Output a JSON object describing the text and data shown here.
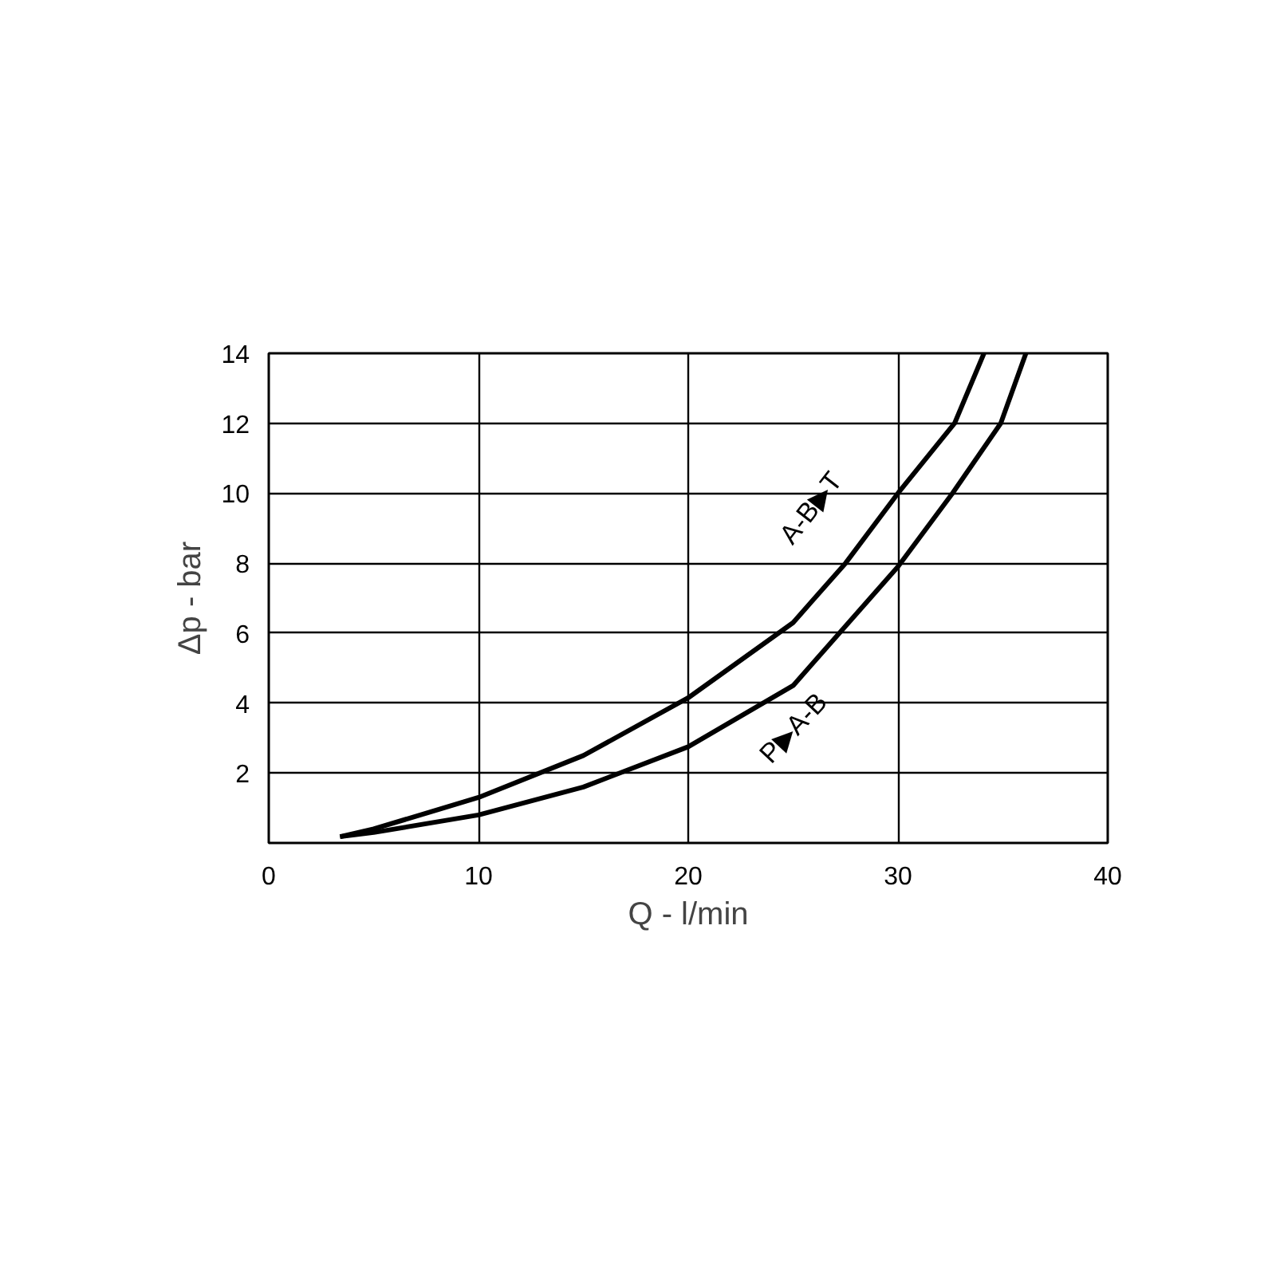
{
  "chart_data": {
    "type": "line",
    "xlabel": "Q - l/min",
    "ylabel": "Δp - bar",
    "xlim": [
      0,
      40
    ],
    "ylim": [
      0,
      14
    ],
    "xticks": [
      0,
      10,
      20,
      30,
      40
    ],
    "yticks": [
      2,
      4,
      6,
      8,
      10,
      12,
      14
    ],
    "grid": true,
    "marker": "none",
    "line_style": "solid",
    "series": [
      {
        "color": "#000000",
        "x": [
          3.4,
          5,
          10,
          15,
          20,
          25,
          27.5,
          30,
          32.7,
          34.1
        ],
        "values": [
          0.18,
          0.4,
          1.3,
          2.5,
          4.15,
          6.3,
          8,
          10,
          12,
          14
        ]
      },
      {
        "color": "#000000",
        "x": [
          3.4,
          5,
          10,
          15,
          20,
          25,
          30,
          32.6,
          34.9,
          36.1
        ],
        "values": [
          0.18,
          0.3,
          0.8,
          1.6,
          2.75,
          4.5,
          7.9,
          10,
          12,
          14
        ]
      }
    ],
    "annotations": [
      "A-B▶T",
      "P▶A-B"
    ]
  }
}
